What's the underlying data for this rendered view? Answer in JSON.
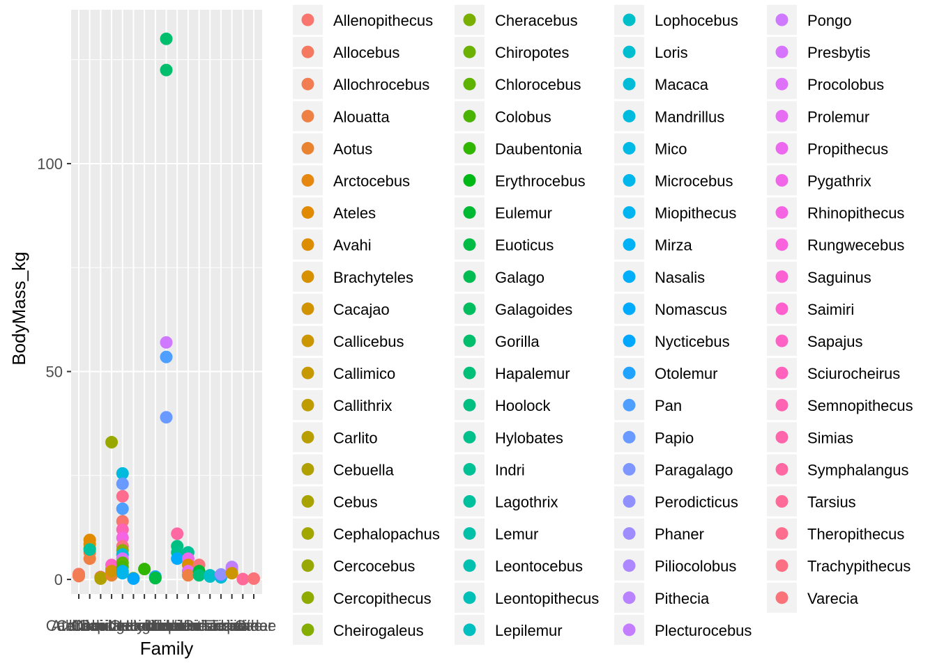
{
  "chart_data": {
    "type": "scatter",
    "xlabel": "Family",
    "ylabel": "BodyMass_kg",
    "ylim": [
      -3.5,
      137
    ],
    "yticks": [
      0,
      50,
      100
    ],
    "grid": true,
    "legend_position": "right",
    "categories": [
      "Atelidae",
      "Callitrichidae",
      "Cebidae",
      "Cercopithecidae",
      "Cheirogaleidae",
      "Daubentoniidae",
      "Galagidae",
      "Hominidae",
      "Hylobatidae",
      "Indriidae",
      "Lemuridae",
      "Lepilemuridae",
      "Lorisidae",
      "Pitheciidae",
      "Tarsiidae",
      "Tupaiidae",
      "Other"
    ],
    "x_tick_labels": [
      "Atelidae",
      "Callitrichidae",
      "Cebidae",
      "Cercopithecidae",
      "Cheirogaleidae",
      "Daubentoniidae",
      "Galagidae",
      "Hominidae",
      "Hylobatidae",
      "Indriidae",
      "Lemuridae",
      "Lepilemuridae",
      "Lorisidae",
      "Pitheciidae",
      "Tarsiidae",
      "Tupaiidae",
      "Other"
    ],
    "legend_entries": [
      "Allenopithecus",
      "Allocebus",
      "Allochrocebus",
      "Alouatta",
      "Aotus",
      "Arctocebus",
      "Ateles",
      "Avahi",
      "Brachyteles",
      "Cacajao",
      "Callicebus",
      "Callimico",
      "Callithrix",
      "Carlito",
      "Cebuella",
      "Cebus",
      "Cephalopachus",
      "Cercocebus",
      "Cercopithecus",
      "Cheirogaleus",
      "Cheracebus",
      "Chiropotes",
      "Chlorocebus",
      "Colobus",
      "Daubentonia",
      "Erythrocebus",
      "Eulemur",
      "Euoticus",
      "Galago",
      "Galagoides",
      "Gorilla",
      "Hapalemur",
      "Hoolock",
      "Hylobates",
      "Indri",
      "Lagothrix",
      "Lemur",
      "Leontocebus",
      "Leontopithecus",
      "Lepilemur",
      "Lophocebus",
      "Loris",
      "Macaca",
      "Mandrillus",
      "Mico",
      "Microcebus",
      "Miopithecus",
      "Mirza",
      "Nasalis",
      "Nomascus",
      "Nycticebus",
      "Otolemur",
      "Pan",
      "Papio",
      "Paragalago",
      "Perodicticus",
      "Phaner",
      "Piliocolobus",
      "Pithecia",
      "Plecturocebus",
      "Pongo",
      "Presbytis",
      "Procolobus",
      "Prolemur",
      "Propithecus",
      "Pygathrix",
      "Rhinopithecus",
      "Rungwecebus",
      "Saguinus",
      "Saimiri",
      "Sapajus",
      "Sciurocheirus",
      "Semnopithecus",
      "Simias",
      "Symphalangus",
      "Tarsius",
      "Theropithecus",
      "Trachypithecus",
      "Varecia"
    ],
    "points": [
      {
        "x": 0,
        "y": 1.0,
        "g": 0
      },
      {
        "x": 0,
        "y": 1.3,
        "g": 1
      },
      {
        "x": 0,
        "y": 0.8,
        "g": 2
      },
      {
        "x": 1,
        "y": 5.0,
        "g": 3
      },
      {
        "x": 1,
        "y": 6.5,
        "g": 3
      },
      {
        "x": 1,
        "y": 8.5,
        "g": 6
      },
      {
        "x": 1,
        "y": 9.5,
        "g": 6
      },
      {
        "x": 1,
        "y": 7.5,
        "g": 8
      },
      {
        "x": 1,
        "y": 7.2,
        "g": 35
      },
      {
        "x": 2,
        "y": 0.3,
        "g": 12
      },
      {
        "x": 2,
        "y": 0.6,
        "g": 68
      },
      {
        "x": 2,
        "y": 0.5,
        "g": 11
      },
      {
        "x": 2,
        "y": 0.2,
        "g": 14
      },
      {
        "x": 3,
        "y": 33.0,
        "g": 17
      },
      {
        "x": 3,
        "y": 2.5,
        "g": 15
      },
      {
        "x": 3,
        "y": 3.5,
        "g": 70
      },
      {
        "x": 3,
        "y": 1.5,
        "g": 69
      },
      {
        "x": 3,
        "y": 1.0,
        "g": 4
      },
      {
        "x": 3,
        "y": 2.0,
        "g": 9
      },
      {
        "x": 4,
        "y": 25.5,
        "g": 43
      },
      {
        "x": 4,
        "y": 23.0,
        "g": 53
      },
      {
        "x": 4,
        "y": 20.0,
        "g": 76
      },
      {
        "x": 4,
        "y": 17.0,
        "g": 52
      },
      {
        "x": 4,
        "y": 14.0,
        "g": 0
      },
      {
        "x": 4,
        "y": 12.0,
        "g": 72
      },
      {
        "x": 4,
        "y": 10.0,
        "g": 66
      },
      {
        "x": 4,
        "y": 8.0,
        "g": 77
      },
      {
        "x": 4,
        "y": 7.0,
        "g": 18
      },
      {
        "x": 4,
        "y": 6.0,
        "g": 42
      },
      {
        "x": 4,
        "y": 5.0,
        "g": 61
      },
      {
        "x": 4,
        "y": 4.0,
        "g": 22
      },
      {
        "x": 4,
        "y": 3.0,
        "g": 23
      },
      {
        "x": 4,
        "y": 2.0,
        "g": 46
      },
      {
        "x": 4,
        "y": 1.5,
        "g": 45
      },
      {
        "x": 5,
        "y": 0.3,
        "g": 19
      },
      {
        "x": 5,
        "y": 0.2,
        "g": 50
      },
      {
        "x": 6,
        "y": 2.5,
        "g": 24
      },
      {
        "x": 7,
        "y": 0.3,
        "g": 28
      },
      {
        "x": 7,
        "y": 0.7,
        "g": 51
      },
      {
        "x": 7,
        "y": 0.4,
        "g": 27
      },
      {
        "x": 8,
        "y": 130.0,
        "g": 30
      },
      {
        "x": 8,
        "y": 122.5,
        "g": 30
      },
      {
        "x": 8,
        "y": 57.0,
        "g": 60
      },
      {
        "x": 8,
        "y": 53.5,
        "g": 52
      },
      {
        "x": 8,
        "y": 39.0,
        "g": 53
      },
      {
        "x": 9,
        "y": 11.0,
        "g": 74
      },
      {
        "x": 9,
        "y": 8.0,
        "g": 32
      },
      {
        "x": 9,
        "y": 6.5,
        "g": 33
      },
      {
        "x": 9,
        "y": 5.0,
        "g": 49
      },
      {
        "x": 10,
        "y": 6.5,
        "g": 34
      },
      {
        "x": 10,
        "y": 5.0,
        "g": 64
      },
      {
        "x": 10,
        "y": 3.5,
        "g": 7
      },
      {
        "x": 10,
        "y": 2.0,
        "g": 63
      },
      {
        "x": 10,
        "y": 1.0,
        "g": 3
      },
      {
        "x": 11,
        "y": 3.5,
        "g": 78
      },
      {
        "x": 11,
        "y": 2.0,
        "g": 26
      },
      {
        "x": 11,
        "y": 1.0,
        "g": 31
      },
      {
        "x": 12,
        "y": 1.0,
        "g": 39
      },
      {
        "x": 12,
        "y": 0.7,
        "g": 40
      },
      {
        "x": 13,
        "y": 0.5,
        "g": 41
      },
      {
        "x": 13,
        "y": 1.0,
        "g": 50
      },
      {
        "x": 13,
        "y": 1.2,
        "g": 55
      },
      {
        "x": 14,
        "y": 3.0,
        "g": 58
      },
      {
        "x": 14,
        "y": 2.5,
        "g": 59
      },
      {
        "x": 14,
        "y": 1.5,
        "g": 10
      },
      {
        "x": 15,
        "y": 0.1,
        "g": 75
      },
      {
        "x": 16,
        "y": 0.2,
        "g": 78
      }
    ]
  }
}
